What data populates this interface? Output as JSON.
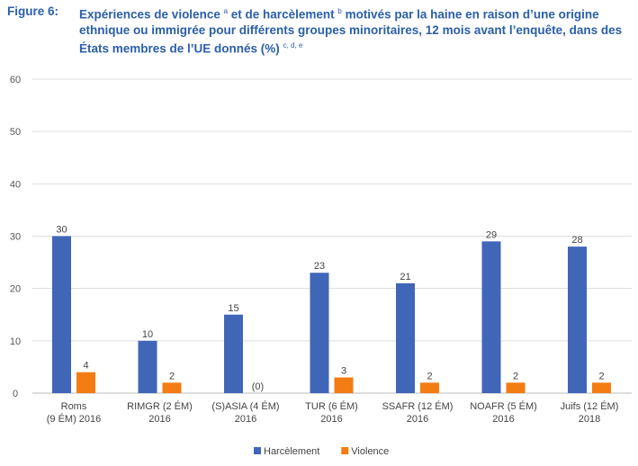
{
  "figure_label": "Figure 6:",
  "title_parts": [
    "Expériences de violence ",
    "a",
    " et de harcèlement ",
    "b",
    " motivés par la haine en raison d’une origine ethnique ou immigrée pour différents groupes minoritaires, 12 mois avant l’enquête, dans des États membres de l’UE donnés (%) ",
    "c, d, e"
  ],
  "chart_data": {
    "type": "bar",
    "title": "Expériences de violence et de harcèlement motivés par la haine en raison d’une origine ethnique ou immigrée pour différents groupes minoritaires, 12 mois avant l’enquête, dans des États membres de l’UE donnés (%)",
    "categories": [
      [
        "Roms",
        "(9 ÉM) 2016"
      ],
      [
        "RIMGR (2 ÉM)",
        "2016"
      ],
      [
        "(S)ASIA (4 ÉM)",
        "2016"
      ],
      [
        "TUR (6 ÉM)",
        "2016"
      ],
      [
        "SSAFR (12 ÉM)",
        "2016"
      ],
      [
        "NOAFR (5 ÉM)",
        "2016"
      ],
      [
        "Juifs (12 ÉM)",
        "2018"
      ]
    ],
    "series": [
      {
        "name": "Harcèlement",
        "color": "#4066b8",
        "values": [
          30,
          10,
          15,
          23,
          21,
          29,
          28
        ],
        "labels": [
          "30",
          "10",
          "15",
          "23",
          "21",
          "29",
          "28"
        ]
      },
      {
        "name": "Violence",
        "color": "#f37c13",
        "values": [
          4,
          2,
          0,
          3,
          2,
          2,
          2
        ],
        "labels": [
          "4",
          "2",
          "(0)",
          "3",
          "2",
          "2",
          "2"
        ]
      }
    ],
    "ylim": [
      0,
      60
    ],
    "yticks": [
      0,
      10,
      20,
      30,
      40,
      50,
      60
    ],
    "grid": true,
    "legend": "bottom"
  }
}
